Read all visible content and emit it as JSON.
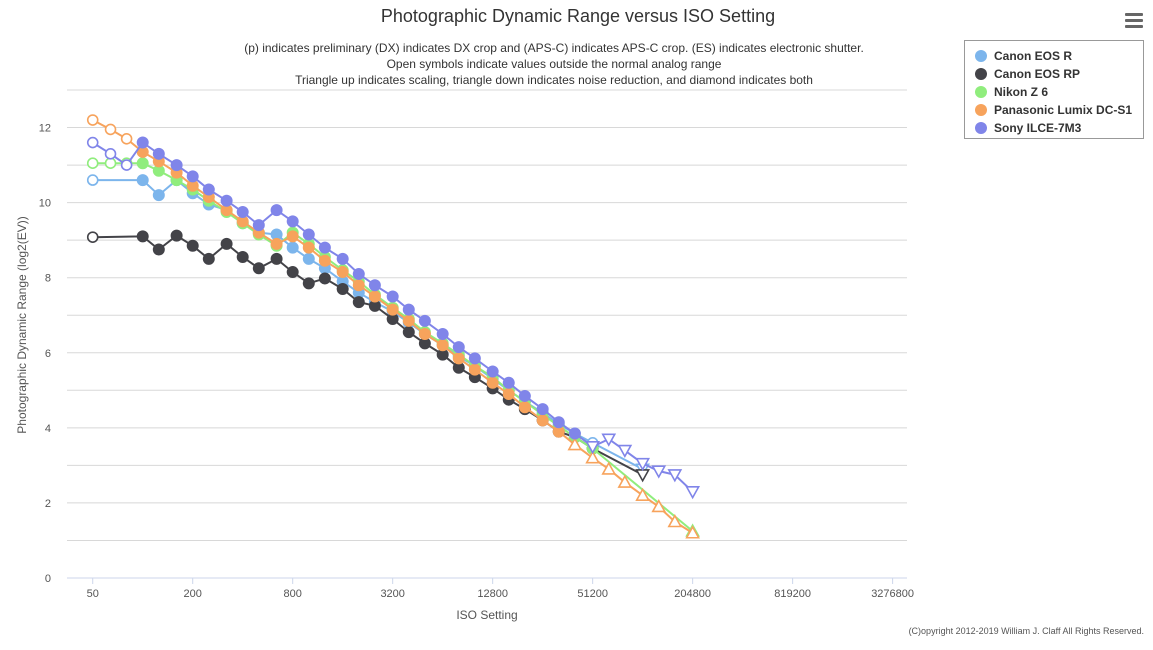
{
  "title": "Photographic Dynamic Range versus ISO Setting",
  "subtitle_lines": [
    "(p) indicates preliminary (DX) indicates DX crop and (APS-C) indicates APS-C crop. (ES) indicates electronic shutter.",
    "Open symbols indicate values outside the normal analog range",
    "Triangle up indicates scaling, triangle down indicates noise reduction, and diamond indicates both"
  ],
  "credits": "(C)opyright 2012-2019 William J. Claff All Rights Reserved.",
  "menu_icon": "hamburger-menu-icon",
  "colors": {
    "Canon EOS R": "#7cb5ec",
    "Canon EOS RP": "#434348",
    "Nikon Z 6": "#90ed7d",
    "Panasonic Lumix DC-S1": "#f7a35c",
    "Sony ILCE-7M3": "#8085e9"
  },
  "chart_data": {
    "type": "line",
    "xlabel": "ISO Setting",
    "ylabel": "Photographic Dynamic Range (log2(EV))",
    "x_scale": "log2",
    "xlim": [
      35,
      4000000
    ],
    "ylim": [
      0,
      13
    ],
    "x_ticks": [
      50,
      200,
      800,
      3200,
      12800,
      51200,
      204800,
      819200,
      3276800
    ],
    "x_tick_labels": [
      "50",
      "200",
      "800",
      "3200",
      "12800",
      "51200",
      "204800",
      "819200",
      "3276800"
    ],
    "y_ticks": [
      0,
      2,
      4,
      6,
      8,
      10,
      12
    ],
    "y_tick_labels": [
      "0",
      "2",
      "4",
      "6",
      "8",
      "10",
      "12"
    ],
    "grid": true,
    "legend_position": "top-right",
    "series": [
      {
        "name": "Canon EOS R",
        "points": [
          {
            "x": 50,
            "y": 10.6,
            "m": "open"
          },
          {
            "x": 100,
            "y": 10.6,
            "m": "circle"
          },
          {
            "x": 125,
            "y": 10.2,
            "m": "circle"
          },
          {
            "x": 160,
            "y": 10.6,
            "m": "circle"
          },
          {
            "x": 200,
            "y": 10.25,
            "m": "circle"
          },
          {
            "x": 250,
            "y": 9.95,
            "m": "circle"
          },
          {
            "x": 320,
            "y": 9.8,
            "m": "circle"
          },
          {
            "x": 400,
            "y": 9.45,
            "m": "circle"
          },
          {
            "x": 500,
            "y": 9.2,
            "m": "circle"
          },
          {
            "x": 640,
            "y": 9.15,
            "m": "circle"
          },
          {
            "x": 800,
            "y": 8.8,
            "m": "circle"
          },
          {
            "x": 1000,
            "y": 8.5,
            "m": "circle"
          },
          {
            "x": 1250,
            "y": 8.25,
            "m": "circle"
          },
          {
            "x": 1600,
            "y": 7.9,
            "m": "circle"
          },
          {
            "x": 2000,
            "y": 7.6,
            "m": "circle"
          },
          {
            "x": 2500,
            "y": 7.35,
            "m": "circle"
          },
          {
            "x": 3200,
            "y": 7.1,
            "m": "circle"
          },
          {
            "x": 4000,
            "y": 6.8,
            "m": "circle"
          },
          {
            "x": 5000,
            "y": 6.5,
            "m": "circle"
          },
          {
            "x": 6400,
            "y": 6.2,
            "m": "circle"
          },
          {
            "x": 8000,
            "y": 5.9,
            "m": "circle"
          },
          {
            "x": 10000,
            "y": 5.65,
            "m": "circle"
          },
          {
            "x": 12800,
            "y": 5.3,
            "m": "circle"
          },
          {
            "x": 16000,
            "y": 5.0,
            "m": "circle"
          },
          {
            "x": 20000,
            "y": 4.7,
            "m": "circle"
          },
          {
            "x": 25600,
            "y": 4.4,
            "m": "circle"
          },
          {
            "x": 32000,
            "y": 4.1,
            "m": "circle"
          },
          {
            "x": 40000,
            "y": 3.85,
            "m": "circle"
          },
          {
            "x": 51200,
            "y": 3.6,
            "m": "open"
          },
          {
            "x": 102400,
            "y": 2.9,
            "m": "open-tri-down"
          }
        ]
      },
      {
        "name": "Canon EOS RP",
        "points": [
          {
            "x": 50,
            "y": 9.08,
            "m": "open"
          },
          {
            "x": 100,
            "y": 9.1,
            "m": "circle"
          },
          {
            "x": 125,
            "y": 8.75,
            "m": "circle"
          },
          {
            "x": 160,
            "y": 9.12,
            "m": "circle"
          },
          {
            "x": 200,
            "y": 8.85,
            "m": "circle"
          },
          {
            "x": 250,
            "y": 8.5,
            "m": "circle"
          },
          {
            "x": 320,
            "y": 8.9,
            "m": "circle"
          },
          {
            "x": 400,
            "y": 8.55,
            "m": "circle"
          },
          {
            "x": 500,
            "y": 8.25,
            "m": "circle"
          },
          {
            "x": 640,
            "y": 8.5,
            "m": "circle"
          },
          {
            "x": 800,
            "y": 8.15,
            "m": "circle"
          },
          {
            "x": 1000,
            "y": 7.85,
            "m": "circle"
          },
          {
            "x": 1250,
            "y": 7.98,
            "m": "circle"
          },
          {
            "x": 1600,
            "y": 7.7,
            "m": "circle"
          },
          {
            "x": 2000,
            "y": 7.35,
            "m": "circle"
          },
          {
            "x": 2500,
            "y": 7.25,
            "m": "circle"
          },
          {
            "x": 3200,
            "y": 6.9,
            "m": "circle"
          },
          {
            "x": 4000,
            "y": 6.55,
            "m": "circle"
          },
          {
            "x": 5000,
            "y": 6.25,
            "m": "circle"
          },
          {
            "x": 6400,
            "y": 5.95,
            "m": "circle"
          },
          {
            "x": 8000,
            "y": 5.6,
            "m": "circle"
          },
          {
            "x": 10000,
            "y": 5.35,
            "m": "circle"
          },
          {
            "x": 12800,
            "y": 5.05,
            "m": "circle"
          },
          {
            "x": 16000,
            "y": 4.75,
            "m": "circle"
          },
          {
            "x": 20000,
            "y": 4.5,
            "m": "circle"
          },
          {
            "x": 25600,
            "y": 4.2,
            "m": "circle"
          },
          {
            "x": 32000,
            "y": 3.9,
            "m": "circle"
          },
          {
            "x": 40000,
            "y": 3.75,
            "m": "circle"
          },
          {
            "x": 51200,
            "y": 3.45,
            "m": "circle"
          },
          {
            "x": 102400,
            "y": 2.75,
            "m": "open-tri-down"
          }
        ]
      },
      {
        "name": "Nikon Z 6",
        "points": [
          {
            "x": 50,
            "y": 11.05,
            "m": "open"
          },
          {
            "x": 64,
            "y": 11.05,
            "m": "open"
          },
          {
            "x": 80,
            "y": 11.05,
            "m": "open"
          },
          {
            "x": 100,
            "y": 11.05,
            "m": "circle"
          },
          {
            "x": 125,
            "y": 10.85,
            "m": "circle"
          },
          {
            "x": 160,
            "y": 10.6,
            "m": "circle"
          },
          {
            "x": 200,
            "y": 10.35,
            "m": "circle"
          },
          {
            "x": 250,
            "y": 10.05,
            "m": "circle"
          },
          {
            "x": 320,
            "y": 9.75,
            "m": "circle"
          },
          {
            "x": 400,
            "y": 9.45,
            "m": "circle"
          },
          {
            "x": 500,
            "y": 9.15,
            "m": "circle"
          },
          {
            "x": 640,
            "y": 8.85,
            "m": "circle"
          },
          {
            "x": 800,
            "y": 9.2,
            "m": "circle"
          },
          {
            "x": 1000,
            "y": 8.9,
            "m": "circle"
          },
          {
            "x": 1250,
            "y": 8.55,
            "m": "circle"
          },
          {
            "x": 1600,
            "y": 8.2,
            "m": "circle"
          },
          {
            "x": 2000,
            "y": 7.9,
            "m": "circle"
          },
          {
            "x": 2500,
            "y": 7.55,
            "m": "circle"
          },
          {
            "x": 3200,
            "y": 7.2,
            "m": "circle"
          },
          {
            "x": 4000,
            "y": 6.9,
            "m": "circle"
          },
          {
            "x": 5000,
            "y": 6.55,
            "m": "circle"
          },
          {
            "x": 6400,
            "y": 6.25,
            "m": "circle"
          },
          {
            "x": 8000,
            "y": 5.95,
            "m": "circle"
          },
          {
            "x": 10000,
            "y": 5.65,
            "m": "circle"
          },
          {
            "x": 12800,
            "y": 5.35,
            "m": "circle"
          },
          {
            "x": 16000,
            "y": 5.0,
            "m": "circle"
          },
          {
            "x": 20000,
            "y": 4.7,
            "m": "circle"
          },
          {
            "x": 25600,
            "y": 4.35,
            "m": "circle"
          },
          {
            "x": 32000,
            "y": 4.05,
            "m": "circle"
          },
          {
            "x": 40000,
            "y": 3.75,
            "m": "circle"
          },
          {
            "x": 51200,
            "y": 3.45,
            "m": "circle"
          },
          {
            "x": 204800,
            "y": 1.25,
            "m": "open-tri-up"
          }
        ]
      },
      {
        "name": "Panasonic Lumix DC-S1",
        "points": [
          {
            "x": 50,
            "y": 12.2,
            "m": "open"
          },
          {
            "x": 64,
            "y": 11.95,
            "m": "open"
          },
          {
            "x": 80,
            "y": 11.7,
            "m": "open"
          },
          {
            "x": 100,
            "y": 11.35,
            "m": "circle"
          },
          {
            "x": 125,
            "y": 11.1,
            "m": "circle"
          },
          {
            "x": 160,
            "y": 10.8,
            "m": "circle"
          },
          {
            "x": 200,
            "y": 10.45,
            "m": "circle"
          },
          {
            "x": 250,
            "y": 10.15,
            "m": "circle"
          },
          {
            "x": 320,
            "y": 9.8,
            "m": "circle"
          },
          {
            "x": 400,
            "y": 9.5,
            "m": "circle"
          },
          {
            "x": 500,
            "y": 9.2,
            "m": "circle"
          },
          {
            "x": 640,
            "y": 8.9,
            "m": "circle"
          },
          {
            "x": 800,
            "y": 9.1,
            "m": "circle"
          },
          {
            "x": 1000,
            "y": 8.8,
            "m": "circle"
          },
          {
            "x": 1250,
            "y": 8.45,
            "m": "circle"
          },
          {
            "x": 1600,
            "y": 8.15,
            "m": "circle"
          },
          {
            "x": 2000,
            "y": 7.8,
            "m": "circle"
          },
          {
            "x": 2500,
            "y": 7.5,
            "m": "circle"
          },
          {
            "x": 3200,
            "y": 7.15,
            "m": "circle"
          },
          {
            "x": 4000,
            "y": 6.85,
            "m": "circle"
          },
          {
            "x": 5000,
            "y": 6.5,
            "m": "circle"
          },
          {
            "x": 6400,
            "y": 6.2,
            "m": "circle"
          },
          {
            "x": 8000,
            "y": 5.85,
            "m": "circle"
          },
          {
            "x": 10000,
            "y": 5.55,
            "m": "circle"
          },
          {
            "x": 12800,
            "y": 5.2,
            "m": "circle"
          },
          {
            "x": 16000,
            "y": 4.9,
            "m": "circle"
          },
          {
            "x": 20000,
            "y": 4.55,
            "m": "circle"
          },
          {
            "x": 25600,
            "y": 4.2,
            "m": "circle"
          },
          {
            "x": 32000,
            "y": 3.9,
            "m": "circle"
          },
          {
            "x": 40000,
            "y": 3.55,
            "m": "open-tri-up"
          },
          {
            "x": 51200,
            "y": 3.2,
            "m": "open-tri-up"
          },
          {
            "x": 64000,
            "y": 2.9,
            "m": "open-tri-up"
          },
          {
            "x": 80000,
            "y": 2.55,
            "m": "open-tri-up"
          },
          {
            "x": 102400,
            "y": 2.2,
            "m": "open-tri-up"
          },
          {
            "x": 128000,
            "y": 1.9,
            "m": "open-tri-up"
          },
          {
            "x": 160000,
            "y": 1.5,
            "m": "open-tri-up"
          },
          {
            "x": 204800,
            "y": 1.2,
            "m": "open-tri-up"
          }
        ]
      },
      {
        "name": "Sony ILCE-7M3",
        "points": [
          {
            "x": 50,
            "y": 11.6,
            "m": "open"
          },
          {
            "x": 64,
            "y": 11.3,
            "m": "open"
          },
          {
            "x": 80,
            "y": 11.0,
            "m": "open"
          },
          {
            "x": 100,
            "y": 11.6,
            "m": "circle"
          },
          {
            "x": 125,
            "y": 11.3,
            "m": "circle"
          },
          {
            "x": 160,
            "y": 11.0,
            "m": "circle"
          },
          {
            "x": 200,
            "y": 10.7,
            "m": "circle"
          },
          {
            "x": 250,
            "y": 10.35,
            "m": "circle"
          },
          {
            "x": 320,
            "y": 10.05,
            "m": "circle"
          },
          {
            "x": 400,
            "y": 9.75,
            "m": "circle"
          },
          {
            "x": 500,
            "y": 9.4,
            "m": "circle"
          },
          {
            "x": 640,
            "y": 9.8,
            "m": "circle"
          },
          {
            "x": 800,
            "y": 9.5,
            "m": "circle"
          },
          {
            "x": 1000,
            "y": 9.15,
            "m": "circle"
          },
          {
            "x": 1250,
            "y": 8.8,
            "m": "circle"
          },
          {
            "x": 1600,
            "y": 8.5,
            "m": "circle"
          },
          {
            "x": 2000,
            "y": 8.1,
            "m": "circle"
          },
          {
            "x": 2500,
            "y": 7.8,
            "m": "circle"
          },
          {
            "x": 3200,
            "y": 7.5,
            "m": "circle"
          },
          {
            "x": 4000,
            "y": 7.15,
            "m": "circle"
          },
          {
            "x": 5000,
            "y": 6.85,
            "m": "circle"
          },
          {
            "x": 6400,
            "y": 6.5,
            "m": "circle"
          },
          {
            "x": 8000,
            "y": 6.15,
            "m": "circle"
          },
          {
            "x": 10000,
            "y": 5.85,
            "m": "circle"
          },
          {
            "x": 12800,
            "y": 5.5,
            "m": "circle"
          },
          {
            "x": 16000,
            "y": 5.2,
            "m": "circle"
          },
          {
            "x": 20000,
            "y": 4.85,
            "m": "circle"
          },
          {
            "x": 25600,
            "y": 4.5,
            "m": "circle"
          },
          {
            "x": 32000,
            "y": 4.15,
            "m": "circle"
          },
          {
            "x": 40000,
            "y": 3.85,
            "m": "circle"
          },
          {
            "x": 51200,
            "y": 3.5,
            "m": "open-tri-down"
          },
          {
            "x": 64000,
            "y": 3.7,
            "m": "open-tri-down"
          },
          {
            "x": 80000,
            "y": 3.4,
            "m": "open-tri-down"
          },
          {
            "x": 102400,
            "y": 3.05,
            "m": "open-tri-down"
          },
          {
            "x": 128000,
            "y": 2.85,
            "m": "open-tri-down"
          },
          {
            "x": 160000,
            "y": 2.75,
            "m": "open-tri-down"
          },
          {
            "x": 204800,
            "y": 2.3,
            "m": "open-tri-down"
          }
        ]
      }
    ]
  }
}
